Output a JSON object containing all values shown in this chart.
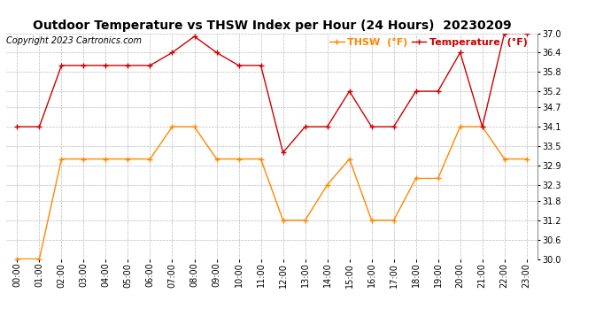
{
  "title": "Outdoor Temperature vs THSW Index per Hour (24 Hours)  20230209",
  "copyright": "Copyright 2023 Cartronics.com",
  "legend_thsw": "THSW  (°F)",
  "legend_temp": "Temperature  (°F)",
  "hours": [
    "00:00",
    "01:00",
    "02:00",
    "03:00",
    "04:00",
    "05:00",
    "06:00",
    "07:00",
    "08:00",
    "09:00",
    "10:00",
    "11:00",
    "12:00",
    "13:00",
    "14:00",
    "15:00",
    "16:00",
    "17:00",
    "18:00",
    "19:00",
    "20:00",
    "21:00",
    "22:00",
    "23:00"
  ],
  "temperature": [
    34.1,
    34.1,
    36.0,
    36.0,
    36.0,
    36.0,
    36.0,
    36.4,
    36.9,
    36.4,
    36.0,
    36.0,
    33.3,
    34.1,
    34.1,
    35.2,
    34.1,
    34.1,
    35.2,
    35.2,
    36.4,
    34.1,
    37.0,
    37.0
  ],
  "thsw": [
    30.0,
    30.0,
    33.1,
    33.1,
    33.1,
    33.1,
    33.1,
    34.1,
    34.1,
    33.1,
    33.1,
    33.1,
    31.2,
    31.2,
    32.3,
    33.1,
    31.2,
    31.2,
    32.5,
    32.5,
    34.1,
    34.1,
    33.1,
    33.1
  ],
  "temp_color": "#cc0000",
  "thsw_color": "#ff8800",
  "ylim_min": 30.0,
  "ylim_max": 37.0,
  "yticks": [
    30.0,
    30.6,
    31.2,
    31.8,
    32.3,
    32.9,
    33.5,
    34.1,
    34.7,
    35.2,
    35.8,
    36.4,
    37.0
  ],
  "bg_color": "#ffffff",
  "grid_color": "#bbbbbb",
  "title_fontsize": 10,
  "label_fontsize": 7,
  "copyright_fontsize": 7,
  "legend_fontsize": 8
}
